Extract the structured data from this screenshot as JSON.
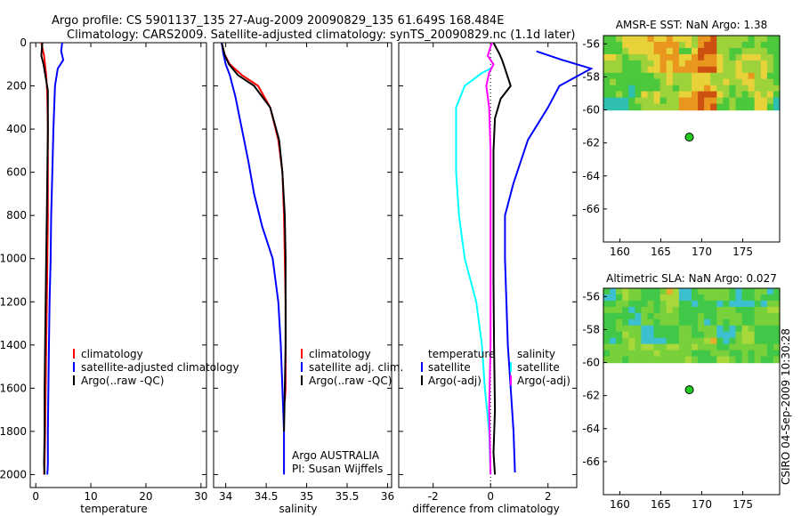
{
  "header": {
    "line1": "Argo profile: CS 5901137_135 27-Aug-2009 20090829_135 61.649S 168.484E",
    "line2": "Climatology: CARS2009. Satellite-adjusted climatology: synTS_20090829.nc (1.1d later)"
  },
  "colors": {
    "climatology": "#ff0000",
    "satellite": "#0000ff",
    "argo": "#000000",
    "cyan": "#00ffff",
    "magenta": "#ff00ff",
    "marker": "#22cc22"
  },
  "side_text": "CSIRO 04-Sep-2009 10:30:28",
  "chart_data": [
    {
      "type": "line",
      "xlabel": "temperature",
      "ylabel": "",
      "xlim": [
        -1,
        31
      ],
      "ylim": [
        2060,
        0
      ],
      "xticks": [
        "0",
        "10",
        "20",
        "30"
      ],
      "yticks": [
        "0",
        "200",
        "400",
        "600",
        "800",
        "1000",
        "1200",
        "1400",
        "1600",
        "1800",
        "2000"
      ],
      "legend": [
        "climatology",
        "satellite-adjusted climatology",
        "Argo(..raw -QC)"
      ],
      "series": [
        {
          "name": "climatology",
          "color": "#ff0000",
          "x": [
            1.0,
            1.5,
            1.9,
            2.0,
            2.1,
            2.2,
            2.2,
            2.2,
            2.1,
            2.0,
            1.9,
            1.8,
            1.7,
            1.6,
            1.5
          ],
          "y": [
            0,
            60,
            150,
            200,
            250,
            400,
            600,
            800,
            1000,
            1200,
            1400,
            1600,
            1800,
            1950,
            2000
          ]
        },
        {
          "name": "satellite-adjusted climatology",
          "color": "#0000ff",
          "x": [
            4.8,
            4.6,
            5.0,
            4.0,
            3.5,
            3.2,
            3.0,
            2.8,
            2.7,
            2.5,
            2.4,
            2.3,
            2.2,
            2.2,
            2.1
          ],
          "y": [
            0,
            40,
            80,
            120,
            200,
            400,
            600,
            800,
            1000,
            1200,
            1400,
            1600,
            1800,
            1950,
            2000
          ]
        },
        {
          "name": "Argo(..raw -QC)",
          "color": "#000000",
          "x": [
            1.2,
            1.0,
            1.4,
            1.8,
            2.2,
            2.2,
            2.1,
            2.0,
            1.9,
            1.8,
            1.7,
            1.6,
            1.6,
            1.5,
            1.6
          ],
          "y": [
            0,
            60,
            100,
            160,
            220,
            400,
            600,
            800,
            1000,
            1200,
            1400,
            1600,
            1800,
            1950,
            2000
          ]
        }
      ]
    },
    {
      "type": "line",
      "xlabel": "salinity",
      "ylabel": "",
      "xlim": [
        33.85,
        36.05
      ],
      "ylim": [
        2060,
        0
      ],
      "xticks": [
        "34",
        "34.5",
        "35",
        "35.5",
        "36"
      ],
      "legend": [
        "climatology",
        "satellite adj. clim.",
        "Argo(..raw -QC)"
      ],
      "annotations": [
        "Argo AUSTRALIA",
        "PI: Susan Wijffels"
      ],
      "series": [
        {
          "name": "climatology",
          "color": "#ff0000",
          "x": [
            33.95,
            33.98,
            34.05,
            34.2,
            34.4,
            34.55,
            34.65,
            34.7,
            34.72,
            34.73,
            34.74,
            34.74,
            34.74,
            34.73
          ],
          "y": [
            0,
            50,
            100,
            150,
            200,
            300,
            450,
            600,
            800,
            1000,
            1200,
            1400,
            1600,
            1660
          ]
        },
        {
          "name": "satellite adj. clim.",
          "color": "#0000ff",
          "x": [
            33.95,
            33.97,
            34.0,
            34.05,
            34.12,
            34.2,
            34.28,
            34.35,
            34.45,
            34.58,
            34.65,
            34.68,
            34.7,
            34.72,
            34.72
          ],
          "y": [
            0,
            50,
            100,
            150,
            250,
            400,
            550,
            700,
            850,
            1000,
            1200,
            1400,
            1600,
            1800,
            2000
          ]
        },
        {
          "name": "Argo(..raw -QC)",
          "color": "#000000",
          "x": [
            33.95,
            33.99,
            34.04,
            34.15,
            34.35,
            34.55,
            34.66,
            34.7,
            34.73,
            34.74,
            34.74,
            34.74,
            34.73,
            34.72
          ],
          "y": [
            0,
            60,
            100,
            150,
            200,
            300,
            450,
            600,
            800,
            1000,
            1200,
            1400,
            1600,
            1800
          ]
        }
      ]
    },
    {
      "type": "line",
      "xlabel": "difference from climatology",
      "ylabel": "",
      "xlim": [
        -3.2,
        3.0
      ],
      "ylim": [
        2060,
        0
      ],
      "xticks": [
        "-2",
        "0",
        "2"
      ],
      "legend_left": [
        "temperature",
        "satellite",
        "Argo(-adj)"
      ],
      "legend_right": [
        "salinity",
        "satellite",
        "Argo(-adj)"
      ],
      "series": [
        {
          "name": "temperature satellite",
          "color": "#0000ff",
          "x": [
            1.6,
            2.5,
            3.5,
            2.4,
            2.0,
            1.3,
            0.8,
            0.5,
            0.5,
            0.55,
            0.6,
            0.7,
            0.8,
            0.85
          ],
          "y": [
            40,
            80,
            120,
            200,
            300,
            450,
            650,
            800,
            1000,
            1200,
            1400,
            1600,
            1800,
            1990
          ]
        },
        {
          "name": "temperature Argo(-adj)",
          "color": "#000000",
          "x": [
            0.1,
            0.3,
            0.4,
            0.5,
            0.7,
            0.35,
            0.15,
            0.1,
            0.1,
            0.1,
            0.12,
            0.15,
            0.1,
            0.15
          ],
          "y": [
            0,
            50,
            80,
            120,
            200,
            260,
            350,
            500,
            800,
            1100,
            1400,
            1700,
            1900,
            2000
          ]
        },
        {
          "name": "salinity satellite",
          "color": "#00ffff",
          "x": [
            0.0,
            -0.3,
            -0.9,
            -1.2,
            -1.2,
            -1.1,
            -0.9,
            -0.5,
            -0.3,
            -0.2,
            -0.05,
            0.0
          ],
          "y": [
            120,
            140,
            200,
            300,
            600,
            800,
            1000,
            1200,
            1400,
            1600,
            1800,
            2000
          ]
        },
        {
          "name": "salinity Argo(-adj)",
          "color": "#ff00ff",
          "x": [
            0.05,
            -0.1,
            0.1,
            -0.05,
            -0.15,
            -0.05,
            0.0,
            0.0,
            0.0,
            0.0,
            -0.05,
            0.0
          ],
          "y": [
            0,
            60,
            100,
            140,
            200,
            300,
            500,
            800,
            1100,
            1400,
            1700,
            2000
          ]
        }
      ]
    },
    {
      "type": "heatmap",
      "title": "AMSR-E SST: NaN Argo: 1.38",
      "xlim": [
        158,
        179.5
      ],
      "ylim": [
        -68,
        -55.5
      ],
      "xticks": [
        "160",
        "165",
        "170",
        "175"
      ],
      "yticks": [
        "-56",
        "-58",
        "-60",
        "-62",
        "-64",
        "-66"
      ],
      "data_lat_range": [
        -60,
        -55.5
      ],
      "marker": {
        "lon": 168.484,
        "lat": -61.649
      }
    },
    {
      "type": "heatmap",
      "title": "Altimetric SLA: NaN Argo: 0.027",
      "xlim": [
        158,
        179.5
      ],
      "ylim": [
        -68,
        -55.5
      ],
      "xticks": [
        "160",
        "165",
        "170",
        "175"
      ],
      "yticks": [
        "-56",
        "-58",
        "-60",
        "-62",
        "-64",
        "-66"
      ],
      "data_lat_range": [
        -60,
        -55.5
      ],
      "marker": {
        "lon": 168.484,
        "lat": -61.649
      }
    }
  ]
}
